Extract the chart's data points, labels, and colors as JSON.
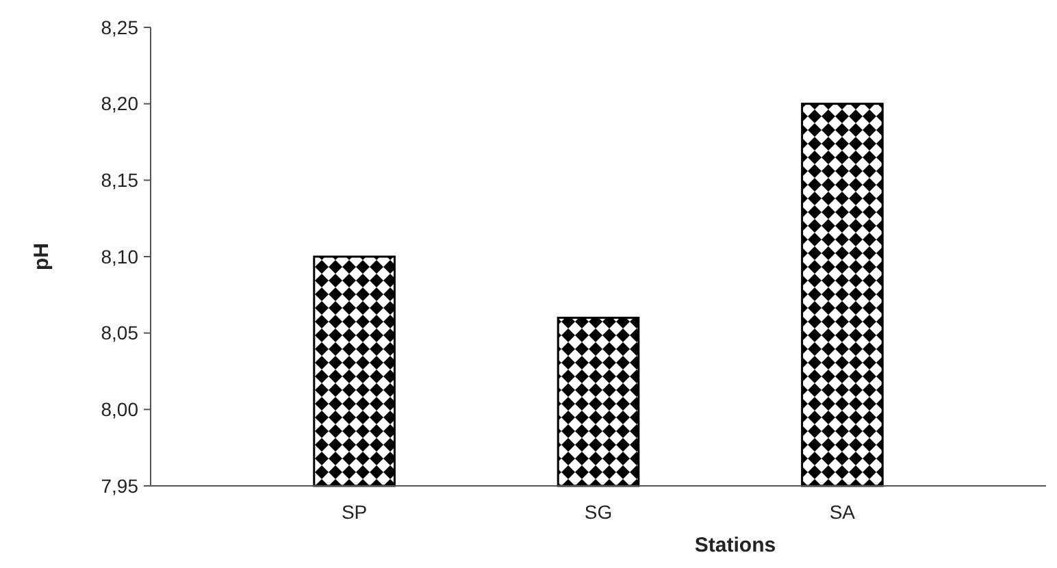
{
  "chart_data": {
    "type": "bar",
    "xlabel": "Stations",
    "ylabel": "pH",
    "categories": [
      "SP",
      "SG",
      "SA"
    ],
    "values": [
      8.1,
      8.06,
      8.2
    ],
    "color": "#000000",
    "ylim": [
      7.95,
      8.25
    ],
    "yticks": [
      {
        "value": 7.95,
        "label": "7,95"
      },
      {
        "value": 8.0,
        "label": "8,00"
      },
      {
        "value": 8.05,
        "label": "8,05"
      },
      {
        "value": 8.1,
        "label": "8,10"
      },
      {
        "value": 8.15,
        "label": "8,15"
      },
      {
        "value": 8.2,
        "label": "8,20"
      },
      {
        "value": 8.25,
        "label": "8,25"
      }
    ],
    "grid": false
  }
}
